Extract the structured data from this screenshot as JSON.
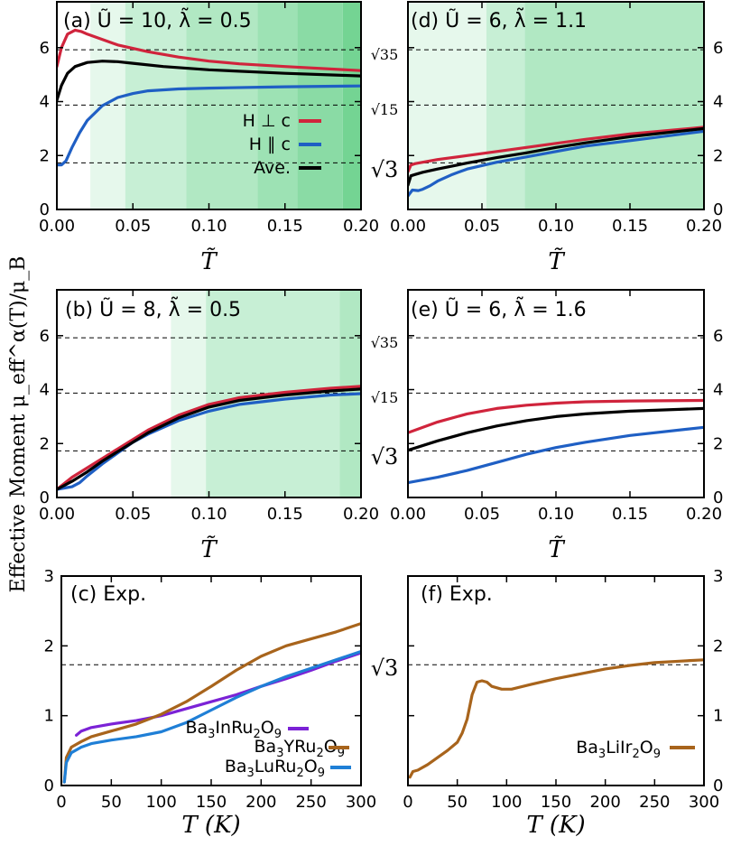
{
  "y_axis_label": "Effective Moment μ_eff^α(T)/μ_B",
  "reference_labels": {
    "s35": "√35",
    "s15": "√15",
    "s3": "√3"
  },
  "chart_data": [
    {
      "id": "a",
      "type": "line",
      "title": "(a) Ũ = 10,   λ̃ = 0.5",
      "xlabel": "T̃",
      "xlim": [
        0,
        0.2
      ],
      "ylim": [
        0,
        7.7
      ],
      "x_ticks": [
        "0.00",
        "0.05",
        "0.10",
        "0.15",
        "0.20"
      ],
      "y_ticks": [
        "0",
        "2",
        "4",
        "6"
      ],
      "reference_lines": [
        5.92,
        3.87,
        1.73
      ],
      "shaded_regions": [
        [
          0.022,
          0.045
        ],
        [
          0.045,
          0.085
        ],
        [
          0.085,
          0.132
        ],
        [
          0.132,
          0.158
        ],
        [
          0.158,
          0.188
        ],
        [
          0.188,
          0.2
        ]
      ],
      "legend": {
        "position": "center-right",
        "entries": [
          "H ⊥ c",
          "H ∥ c",
          "Ave."
        ]
      },
      "series": [
        {
          "name": "H ⊥ c",
          "color": "#d0243c",
          "x": [
            0,
            0.003,
            0.007,
            0.012,
            0.016,
            0.02,
            0.03,
            0.04,
            0.06,
            0.08,
            0.1,
            0.12,
            0.15,
            0.2
          ],
          "y": [
            5.3,
            6.0,
            6.5,
            6.65,
            6.6,
            6.5,
            6.3,
            6.1,
            5.85,
            5.65,
            5.5,
            5.4,
            5.3,
            5.15
          ]
        },
        {
          "name": "H ∥ c",
          "color": "#1f5fc4",
          "x": [
            0,
            0.003,
            0.006,
            0.01,
            0.015,
            0.02,
            0.03,
            0.04,
            0.05,
            0.06,
            0.08,
            0.1,
            0.15,
            0.2
          ],
          "y": [
            1.65,
            1.65,
            1.8,
            2.3,
            2.85,
            3.3,
            3.85,
            4.15,
            4.3,
            4.4,
            4.47,
            4.5,
            4.55,
            4.58
          ]
        },
        {
          "name": "Ave.",
          "color": "#000000",
          "x": [
            0,
            0.003,
            0.007,
            0.012,
            0.02,
            0.03,
            0.04,
            0.05,
            0.07,
            0.1,
            0.15,
            0.2
          ],
          "y": [
            4.05,
            4.6,
            5.05,
            5.3,
            5.45,
            5.5,
            5.48,
            5.42,
            5.3,
            5.18,
            5.05,
            4.95
          ]
        }
      ]
    },
    {
      "id": "b",
      "type": "line",
      "title": "(b) Ũ = 8,   λ̃ = 0.5",
      "xlabel": "T̃",
      "xlim": [
        0,
        0.2
      ],
      "ylim": [
        0,
        7.7
      ],
      "x_ticks": [
        "0.00",
        "0.05",
        "0.10",
        "0.15",
        "0.20"
      ],
      "y_ticks": [
        "0",
        "2",
        "4",
        "6"
      ],
      "reference_lines": [
        5.92,
        3.87,
        1.73
      ],
      "shaded_regions": [
        [
          0.075,
          0.098
        ],
        [
          0.098,
          0.186
        ],
        [
          0.186,
          0.2
        ]
      ],
      "series": [
        {
          "name": "H ⊥ c",
          "color": "#d0243c",
          "x": [
            0,
            0.01,
            0.02,
            0.03,
            0.04,
            0.05,
            0.06,
            0.08,
            0.1,
            0.12,
            0.15,
            0.18,
            0.2
          ],
          "y": [
            0.3,
            0.75,
            1.1,
            1.45,
            1.8,
            2.15,
            2.5,
            3.05,
            3.45,
            3.7,
            3.9,
            4.05,
            4.12
          ]
        },
        {
          "name": "H ∥ c",
          "color": "#1f5fc4",
          "x": [
            0,
            0.005,
            0.01,
            0.015,
            0.02,
            0.03,
            0.04,
            0.05,
            0.06,
            0.08,
            0.1,
            0.12,
            0.15,
            0.18,
            0.2
          ],
          "y": [
            0.3,
            0.35,
            0.4,
            0.55,
            0.8,
            1.25,
            1.65,
            2.05,
            2.35,
            2.85,
            3.2,
            3.45,
            3.65,
            3.8,
            3.85
          ]
        },
        {
          "name": "Ave.",
          "color": "#000000",
          "x": [
            0,
            0.01,
            0.02,
            0.03,
            0.04,
            0.05,
            0.06,
            0.08,
            0.1,
            0.12,
            0.15,
            0.18,
            0.2
          ],
          "y": [
            0.3,
            0.6,
            0.95,
            1.35,
            1.7,
            2.05,
            2.4,
            2.95,
            3.35,
            3.6,
            3.8,
            3.95,
            4.02
          ]
        }
      ]
    },
    {
      "id": "c",
      "type": "line",
      "title": "(c) Exp.",
      "xlabel": "T (K)",
      "xlim": [
        0,
        300
      ],
      "ylim": [
        0,
        3
      ],
      "x_ticks": [
        "0",
        "50",
        "100",
        "150",
        "200",
        "250",
        "300"
      ],
      "y_ticks": [
        "0",
        "1",
        "2",
        "3"
      ],
      "reference_lines": [
        1.73
      ],
      "legend": {
        "position": "bottom-right",
        "entries": [
          "Ba3InRu2O9",
          "Ba3YRu2O9",
          "Ba3LuRu2O9"
        ]
      },
      "series": [
        {
          "name": "Ba3InRu2O9",
          "formula": [
            "Ba",
            "3",
            "InRu",
            "2",
            "O",
            "9"
          ],
          "color": "#7b22d6",
          "x": [
            15,
            20,
            30,
            50,
            75,
            100,
            125,
            150,
            175,
            200,
            225,
            250,
            275,
            300
          ],
          "y": [
            0.72,
            0.78,
            0.83,
            0.88,
            0.93,
            1.0,
            1.1,
            1.2,
            1.3,
            1.42,
            1.53,
            1.65,
            1.78,
            1.9
          ]
        },
        {
          "name": "Ba3YRu2O9",
          "formula": [
            "Ba",
            "3",
            "YRu",
            "2",
            "O",
            "9"
          ],
          "color": "#a8641c",
          "x": [
            3,
            5,
            10,
            20,
            30,
            50,
            75,
            100,
            125,
            150,
            175,
            200,
            225,
            250,
            275,
            300
          ],
          "y": [
            0.05,
            0.4,
            0.55,
            0.63,
            0.7,
            0.78,
            0.88,
            1.02,
            1.2,
            1.42,
            1.65,
            1.85,
            2.0,
            2.1,
            2.2,
            2.32
          ]
        },
        {
          "name": "Ba3LuRu2O9",
          "formula": [
            "Ba",
            "3",
            "LuRu",
            "2",
            "O",
            "9"
          ],
          "color": "#1f7fd6",
          "x": [
            3,
            5,
            10,
            20,
            30,
            50,
            75,
            100,
            125,
            150,
            175,
            200,
            225,
            250,
            275,
            300
          ],
          "y": [
            0.05,
            0.33,
            0.47,
            0.55,
            0.6,
            0.65,
            0.7,
            0.77,
            0.9,
            1.08,
            1.26,
            1.42,
            1.56,
            1.68,
            1.8,
            1.92
          ]
        }
      ]
    },
    {
      "id": "d",
      "type": "line",
      "title": "(d) Ũ = 6,   λ̃ = 1.1",
      "xlabel": "T̃",
      "xlim": [
        0,
        0.2
      ],
      "ylim": [
        0,
        7.7
      ],
      "x_ticks": [
        "0.00",
        "0.05",
        "0.10",
        "0.15",
        "0.20"
      ],
      "y_ticks": [
        "0",
        "2",
        "4",
        "6"
      ],
      "reference_lines": [
        5.92,
        3.87,
        1.73
      ],
      "shaded_regions": [
        [
          0.0,
          0.053
        ],
        [
          0.053,
          0.079
        ],
        [
          0.079,
          0.2
        ]
      ],
      "series": [
        {
          "name": "H ⊥ c",
          "color": "#d0243c",
          "x": [
            0,
            0.002,
            0.005,
            0.01,
            0.02,
            0.04,
            0.06,
            0.08,
            0.1,
            0.12,
            0.15,
            0.2
          ],
          "y": [
            1.4,
            1.65,
            1.7,
            1.75,
            1.85,
            2.0,
            2.15,
            2.3,
            2.45,
            2.6,
            2.8,
            3.05
          ]
        },
        {
          "name": "H ∥ c",
          "color": "#1f5fc4",
          "x": [
            0,
            0.003,
            0.007,
            0.01,
            0.015,
            0.02,
            0.03,
            0.04,
            0.06,
            0.08,
            0.1,
            0.12,
            0.15,
            0.2
          ],
          "y": [
            0.5,
            0.72,
            0.7,
            0.75,
            0.88,
            1.05,
            1.3,
            1.5,
            1.75,
            1.95,
            2.15,
            2.35,
            2.55,
            2.9
          ]
        },
        {
          "name": "Ave.",
          "color": "#000000",
          "x": [
            0,
            0.002,
            0.005,
            0.01,
            0.02,
            0.04,
            0.06,
            0.08,
            0.1,
            0.12,
            0.15,
            0.2
          ],
          "y": [
            0.9,
            1.25,
            1.3,
            1.38,
            1.5,
            1.72,
            1.92,
            2.1,
            2.3,
            2.47,
            2.7,
            3.0
          ]
        }
      ]
    },
    {
      "id": "e",
      "type": "line",
      "title": "(e) Ũ = 6,   λ̃ = 1.6",
      "xlabel": "T̃",
      "xlim": [
        0,
        0.2
      ],
      "ylim": [
        0,
        7.7
      ],
      "x_ticks": [
        "0.00",
        "0.05",
        "0.10",
        "0.15",
        "0.20"
      ],
      "y_ticks": [
        "0",
        "2",
        "4",
        "6"
      ],
      "reference_lines": [
        5.92,
        3.87,
        1.73
      ],
      "series": [
        {
          "name": "H ⊥ c",
          "color": "#d0243c",
          "x": [
            0,
            0.02,
            0.04,
            0.06,
            0.08,
            0.1,
            0.12,
            0.15,
            0.2
          ],
          "y": [
            2.4,
            2.8,
            3.1,
            3.3,
            3.42,
            3.5,
            3.55,
            3.58,
            3.6
          ]
        },
        {
          "name": "H ∥ c",
          "color": "#1f5fc4",
          "x": [
            0,
            0.02,
            0.04,
            0.06,
            0.08,
            0.1,
            0.12,
            0.15,
            0.2
          ],
          "y": [
            0.55,
            0.75,
            1.0,
            1.3,
            1.6,
            1.85,
            2.05,
            2.3,
            2.6
          ]
        },
        {
          "name": "Ave.",
          "color": "#000000",
          "x": [
            0,
            0.02,
            0.04,
            0.06,
            0.08,
            0.1,
            0.12,
            0.15,
            0.2
          ],
          "y": [
            1.75,
            2.1,
            2.4,
            2.65,
            2.85,
            3.0,
            3.1,
            3.2,
            3.3
          ]
        }
      ]
    },
    {
      "id": "f",
      "type": "line",
      "title": "(f) Exp.",
      "xlabel": "T (K)",
      "xlim": [
        0,
        300
      ],
      "ylim": [
        0,
        3
      ],
      "x_ticks": [
        "0",
        "50",
        "100",
        "150",
        "200",
        "250",
        "300"
      ],
      "y_ticks": [
        "0",
        "1",
        "2",
        "3"
      ],
      "reference_lines": [
        1.73
      ],
      "legend": {
        "position": "bottom-right",
        "entries": [
          "Ba3LiIr2O9"
        ]
      },
      "series": [
        {
          "name": "Ba3LiIr2O9",
          "formula": [
            "Ba",
            "3",
            "LiIr",
            "2",
            "O",
            "9"
          ],
          "color": "#a8641c",
          "x": [
            2,
            5,
            10,
            20,
            30,
            40,
            50,
            55,
            60,
            65,
            70,
            75,
            80,
            85,
            95,
            105,
            125,
            150,
            175,
            200,
            225,
            250,
            275,
            300
          ],
          "y": [
            0.12,
            0.2,
            0.22,
            0.3,
            0.4,
            0.5,
            0.62,
            0.75,
            0.95,
            1.3,
            1.48,
            1.5,
            1.48,
            1.42,
            1.38,
            1.38,
            1.45,
            1.53,
            1.6,
            1.67,
            1.72,
            1.76,
            1.78,
            1.8
          ]
        }
      ]
    }
  ]
}
